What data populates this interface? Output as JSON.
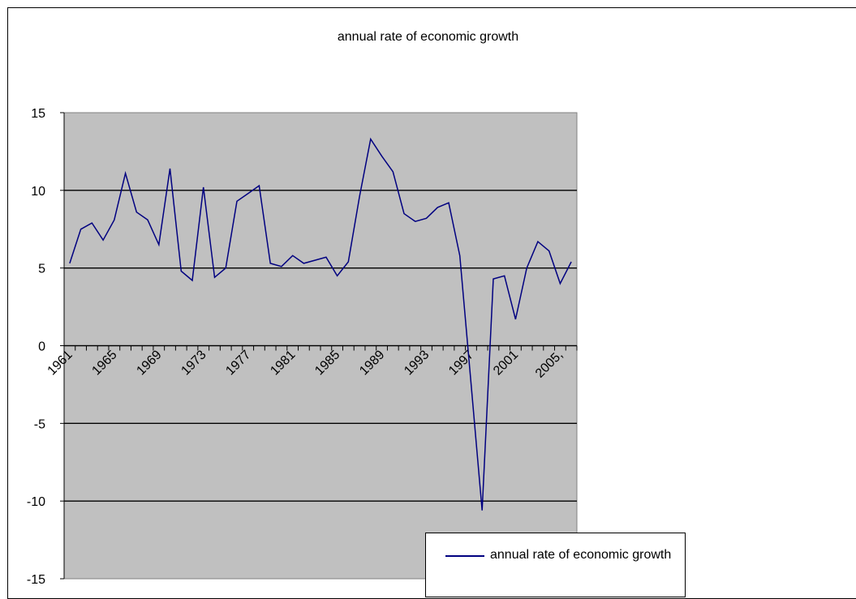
{
  "chart_data": {
    "type": "line",
    "title": "annual rate of economic growth",
    "xlabel": "",
    "ylabel": "",
    "ylim": [
      -15,
      15
    ],
    "yticks": [
      -15,
      -10,
      -5,
      0,
      5,
      10,
      15
    ],
    "y_tick_labels": [
      "-15",
      "-10",
      "-5",
      "0",
      "5",
      "10",
      "15"
    ],
    "x_tick_labels": [
      "1961",
      "1965",
      "1969",
      "1973",
      "1977",
      "1981",
      "1985",
      "1989",
      "1993",
      "1997",
      "2001",
      "2005,"
    ],
    "x": [
      1961,
      1962,
      1963,
      1964,
      1965,
      1966,
      1967,
      1968,
      1969,
      1970,
      1971,
      1972,
      1973,
      1974,
      1975,
      1976,
      1977,
      1978,
      1979,
      1980,
      1981,
      1982,
      1983,
      1984,
      1985,
      1986,
      1987,
      1988,
      1989,
      1990,
      1991,
      1992,
      1993,
      1994,
      1995,
      1996,
      1997,
      1998,
      1999,
      2000,
      2001,
      2002,
      2003,
      2004,
      2005,
      2006
    ],
    "grid": true,
    "legend_position": "bottom-right",
    "plot_background": "#c0c0c0",
    "series": [
      {
        "name": "annual rate of economic growth",
        "color": "#000080",
        "values": [
          5.3,
          7.5,
          7.9,
          6.8,
          8.1,
          11.1,
          8.6,
          8.1,
          6.5,
          11.4,
          4.8,
          4.2,
          10.2,
          4.4,
          5.0,
          9.3,
          9.8,
          10.3,
          5.3,
          5.1,
          5.8,
          5.3,
          5.5,
          5.7,
          4.5,
          5.4,
          9.6,
          13.3,
          12.2,
          11.2,
          8.5,
          8.0,
          8.2,
          8.9,
          9.2,
          5.8,
          -2.4,
          -10.6,
          4.3,
          4.5,
          1.7,
          5.0,
          6.7,
          6.1,
          4.0,
          5.4
        ]
      }
    ]
  }
}
